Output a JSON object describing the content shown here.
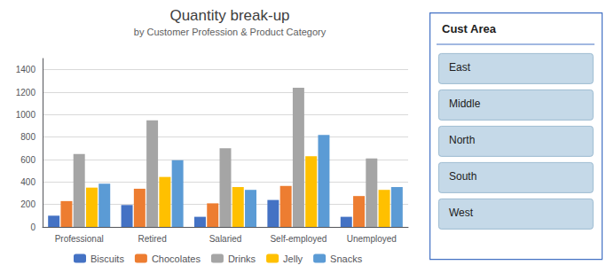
{
  "chart_data": {
    "type": "bar",
    "title": "Quantity break-up",
    "subtitle": "by Customer Profession & Product Category",
    "categories": [
      "Professional",
      "Retired",
      "Salaried",
      "Self-employed",
      "Unemployed"
    ],
    "series": [
      {
        "name": "Biscuits",
        "color": "#4472c4",
        "values": [
          100,
          195,
          90,
          240,
          90
        ]
      },
      {
        "name": "Chocolates",
        "color": "#ed7d31",
        "values": [
          230,
          340,
          210,
          365,
          275
        ]
      },
      {
        "name": "Drinks",
        "color": "#a5a5a5",
        "values": [
          650,
          950,
          700,
          1240,
          610
        ]
      },
      {
        "name": "Jelly",
        "color": "#ffc000",
        "values": [
          350,
          445,
          355,
          630,
          330
        ]
      },
      {
        "name": "Snacks",
        "color": "#5b9bd5",
        "values": [
          385,
          595,
          330,
          820,
          355
        ]
      }
    ],
    "ylim": [
      0,
      1500
    ],
    "yticks": [
      0,
      200,
      400,
      600,
      800,
      1000,
      1200,
      1400
    ],
    "grid": true,
    "legend": "bottom",
    "annotations": [
      "Cust Area",
      "East",
      "Middle",
      "North",
      "South",
      "West"
    ]
  }
}
